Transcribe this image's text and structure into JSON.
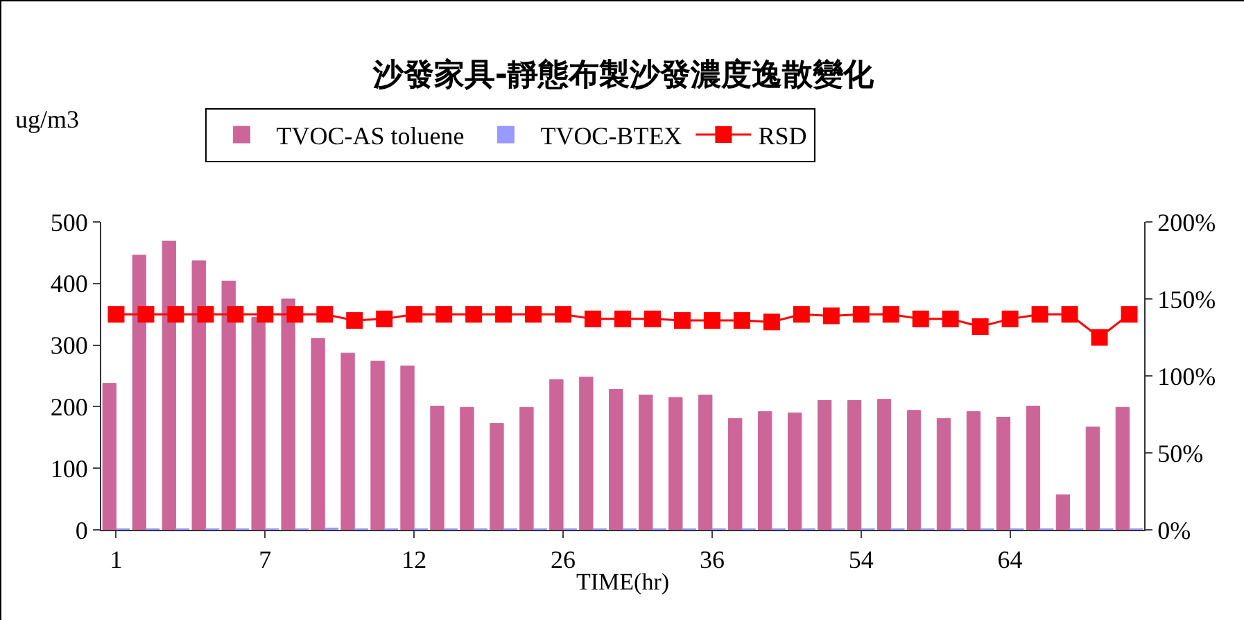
{
  "chart_data": {
    "type": "bar",
    "title": "沙發家具-靜態布製沙發濃度逸散變化",
    "xlabel": "TIME(hr)",
    "ylabel": "ug/m3",
    "categories": [
      "1",
      null,
      null,
      null,
      null,
      "7",
      null,
      null,
      null,
      null,
      "12",
      null,
      null,
      null,
      null,
      "26",
      null,
      null,
      null,
      null,
      "36",
      null,
      null,
      null,
      null,
      "54",
      null,
      null,
      null,
      null,
      "64",
      null,
      null,
      null,
      null
    ],
    "series": [
      {
        "name": "TVOC-AS toluene",
        "color": "#cc6699",
        "values": [
          238,
          446,
          469,
          437,
          404,
          345,
          375,
          311,
          287,
          274,
          266,
          201,
          199,
          173,
          199,
          244,
          248,
          228,
          219,
          215,
          219,
          181,
          192,
          190,
          210,
          210,
          212,
          194,
          181,
          192,
          183,
          201,
          57,
          167,
          199
        ]
      },
      {
        "name": "TVOC-BTEX",
        "color": "#9999ff",
        "values": [
          2,
          2,
          2,
          2,
          2,
          2,
          2,
          3,
          2,
          2,
          2,
          2,
          2,
          2,
          2,
          2,
          2,
          2,
          2,
          2,
          2,
          2,
          2,
          2,
          2,
          2,
          2,
          2,
          2,
          2,
          2,
          2,
          2,
          2,
          2
        ]
      },
      {
        "name": "RSD",
        "color": "#ff0000",
        "type": "line",
        "axis": "y2",
        "marker": "square",
        "values": [
          140,
          140,
          140,
          140,
          140,
          140,
          140,
          140,
          136,
          137,
          140,
          140,
          140,
          140,
          140,
          140,
          137,
          137,
          137,
          136,
          136,
          136,
          135,
          140,
          139,
          140,
          140,
          137,
          137,
          132,
          137,
          140,
          140,
          125,
          140
        ]
      }
    ],
    "ylim": [
      0,
      500
    ],
    "yticks": [
      0,
      100,
      200,
      300,
      400,
      500
    ],
    "y2lim": [
      0,
      200
    ],
    "y2ticks": [
      {
        "value": 0,
        "label": "0%"
      },
      {
        "value": 50,
        "label": "50%"
      },
      {
        "value": 100,
        "label": "100%"
      },
      {
        "value": 150,
        "label": "150%"
      },
      {
        "value": 200,
        "label": "200%"
      }
    ],
    "grid": false,
    "legend": "top"
  }
}
